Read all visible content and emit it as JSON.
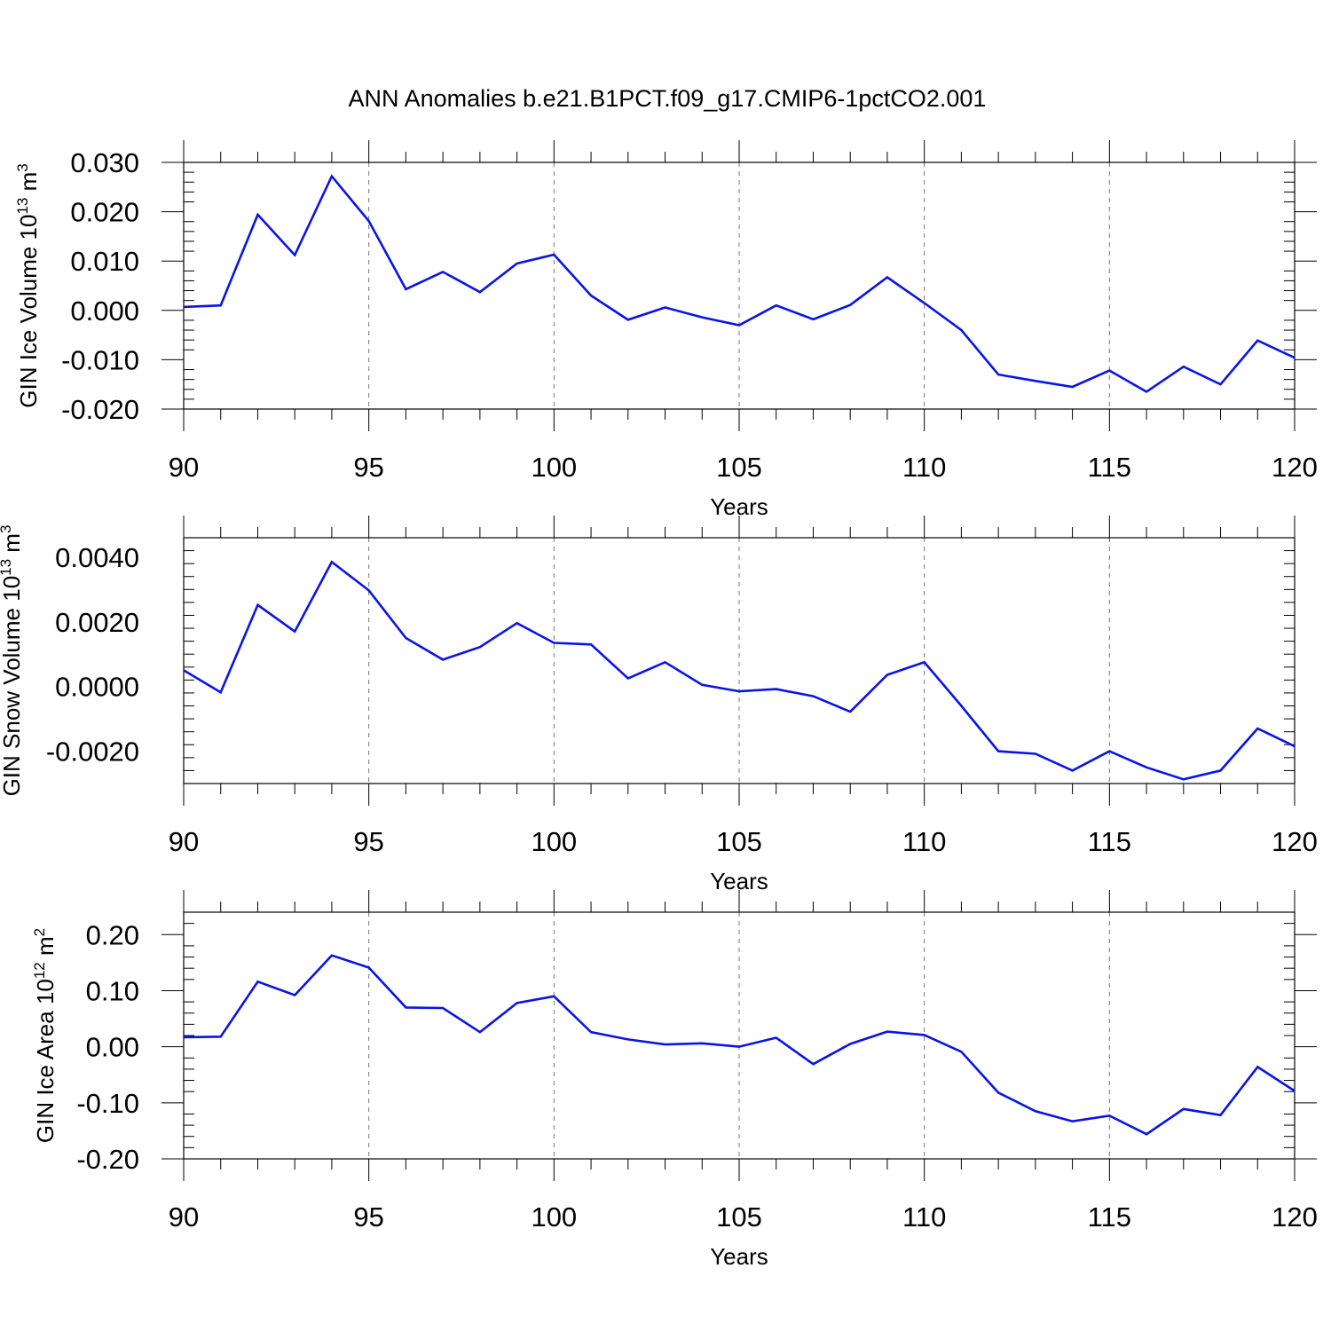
{
  "title": "ANN Anomalies b.e21.B1PCT.f09_g17.CMIP6-1pctCO2.001",
  "colors": {
    "series": "#0a14e6",
    "axes": "#000000",
    "grid": "#777777"
  },
  "chart_data": [
    {
      "type": "line",
      "xlabel": "Years",
      "ylabel": {
        "text": "GIN Ice Volume 10",
        "sup": "13",
        "unit": " m",
        "unit_sup": "3"
      },
      "xlim": [
        90,
        120
      ],
      "ylim": [
        -0.02,
        0.03
      ],
      "xticks": [
        90,
        95,
        100,
        105,
        110,
        115,
        120
      ],
      "yticks": [
        -0.02,
        -0.01,
        0.0,
        0.01,
        0.02,
        0.03
      ],
      "ytick_labels": [
        "-0.020",
        "-0.010",
        "0.000",
        "0.010",
        "0.020",
        "0.030"
      ],
      "xtick_labels": [
        "90",
        "95",
        "100",
        "105",
        "110",
        "115",
        "120"
      ],
      "grid": "vertical dashed at major x ticks",
      "x": [
        90,
        91,
        92,
        93,
        94,
        95,
        96,
        97,
        98,
        99,
        100,
        101,
        102,
        103,
        104,
        105,
        106,
        107,
        108,
        109,
        110,
        111,
        112,
        113,
        114,
        115,
        116,
        117,
        118,
        119,
        120
      ],
      "y": [
        0.0007,
        0.001,
        0.0194,
        0.0112,
        0.0272,
        0.0181,
        0.0043,
        0.0078,
        0.0037,
        0.0095,
        0.0113,
        0.003,
        -0.0019,
        0.0006,
        -0.0014,
        -0.003,
        0.001,
        -0.0018,
        0.0011,
        0.0067,
        0.0015,
        -0.004,
        -0.013,
        -0.0143,
        -0.0155,
        -0.0122,
        -0.0165,
        -0.0114,
        -0.015,
        -0.0061,
        -0.0096
      ]
    },
    {
      "type": "line",
      "xlabel": "Years",
      "ylabel": {
        "text": "GIN Snow Volume 10",
        "sup": "13",
        "unit": " m",
        "unit_sup": "3"
      },
      "xlim": [
        90,
        120
      ],
      "ylim": [
        -0.003,
        0.0046
      ],
      "xticks": [
        90,
        95,
        100,
        105,
        110,
        115,
        120
      ],
      "yticks": [
        -0.002,
        0.0,
        0.002,
        0.004
      ],
      "ytick_labels": [
        "-0.0020",
        "0.0000",
        "0.0020",
        "0.0040"
      ],
      "xtick_labels": [
        "90",
        "95",
        "100",
        "105",
        "110",
        "115",
        "120"
      ],
      "grid": "vertical dashed at major x ticks",
      "x": [
        90,
        91,
        92,
        93,
        94,
        95,
        96,
        97,
        98,
        99,
        100,
        101,
        102,
        103,
        104,
        105,
        106,
        107,
        108,
        109,
        110,
        111,
        112,
        113,
        114,
        115,
        116,
        117,
        118,
        119,
        120
      ],
      "y": [
        0.0005,
        -0.00018,
        0.00252,
        0.0017,
        0.00385,
        0.00297,
        0.0015,
        0.00083,
        0.00122,
        0.00196,
        0.00135,
        0.0013,
        0.00025,
        0.00075,
        5e-05,
        -0.00015,
        -8e-05,
        -0.0003,
        -0.00078,
        0.00036,
        0.00075,
        -0.0006,
        -0.002,
        -0.00208,
        -0.0026,
        -0.002,
        -0.0025,
        -0.00287,
        -0.0026,
        -0.0013,
        -0.00185
      ]
    },
    {
      "type": "line",
      "xlabel": "Years",
      "ylabel": {
        "text": "GIN Ice Area 10",
        "sup": "12",
        "unit": " m",
        "unit_sup": "2"
      },
      "xlim": [
        90,
        120
      ],
      "ylim": [
        -0.2,
        0.24
      ],
      "xticks": [
        90,
        95,
        100,
        105,
        110,
        115,
        120
      ],
      "yticks": [
        -0.2,
        -0.1,
        0.0,
        0.1,
        0.2
      ],
      "ytick_labels": [
        "-0.20",
        "-0.10",
        "0.00",
        "0.10",
        "0.20"
      ],
      "xtick_labels": [
        "90",
        "95",
        "100",
        "105",
        "110",
        "115",
        "120"
      ],
      "grid": "vertical dashed at major x ticks",
      "x": [
        90,
        91,
        92,
        93,
        94,
        95,
        96,
        97,
        98,
        99,
        100,
        101,
        102,
        103,
        104,
        105,
        106,
        107,
        108,
        109,
        110,
        111,
        112,
        113,
        114,
        115,
        116,
        117,
        118,
        119,
        120
      ],
      "y": [
        0.017,
        0.018,
        0.116,
        0.092,
        0.163,
        0.141,
        0.07,
        0.069,
        0.026,
        0.078,
        0.09,
        0.026,
        0.013,
        0.004,
        0.006,
        0.0,
        0.016,
        -0.031,
        0.005,
        0.027,
        0.021,
        -0.009,
        -0.082,
        -0.115,
        -0.133,
        -0.123,
        -0.156,
        -0.111,
        -0.122,
        -0.036,
        -0.079
      ]
    }
  ]
}
